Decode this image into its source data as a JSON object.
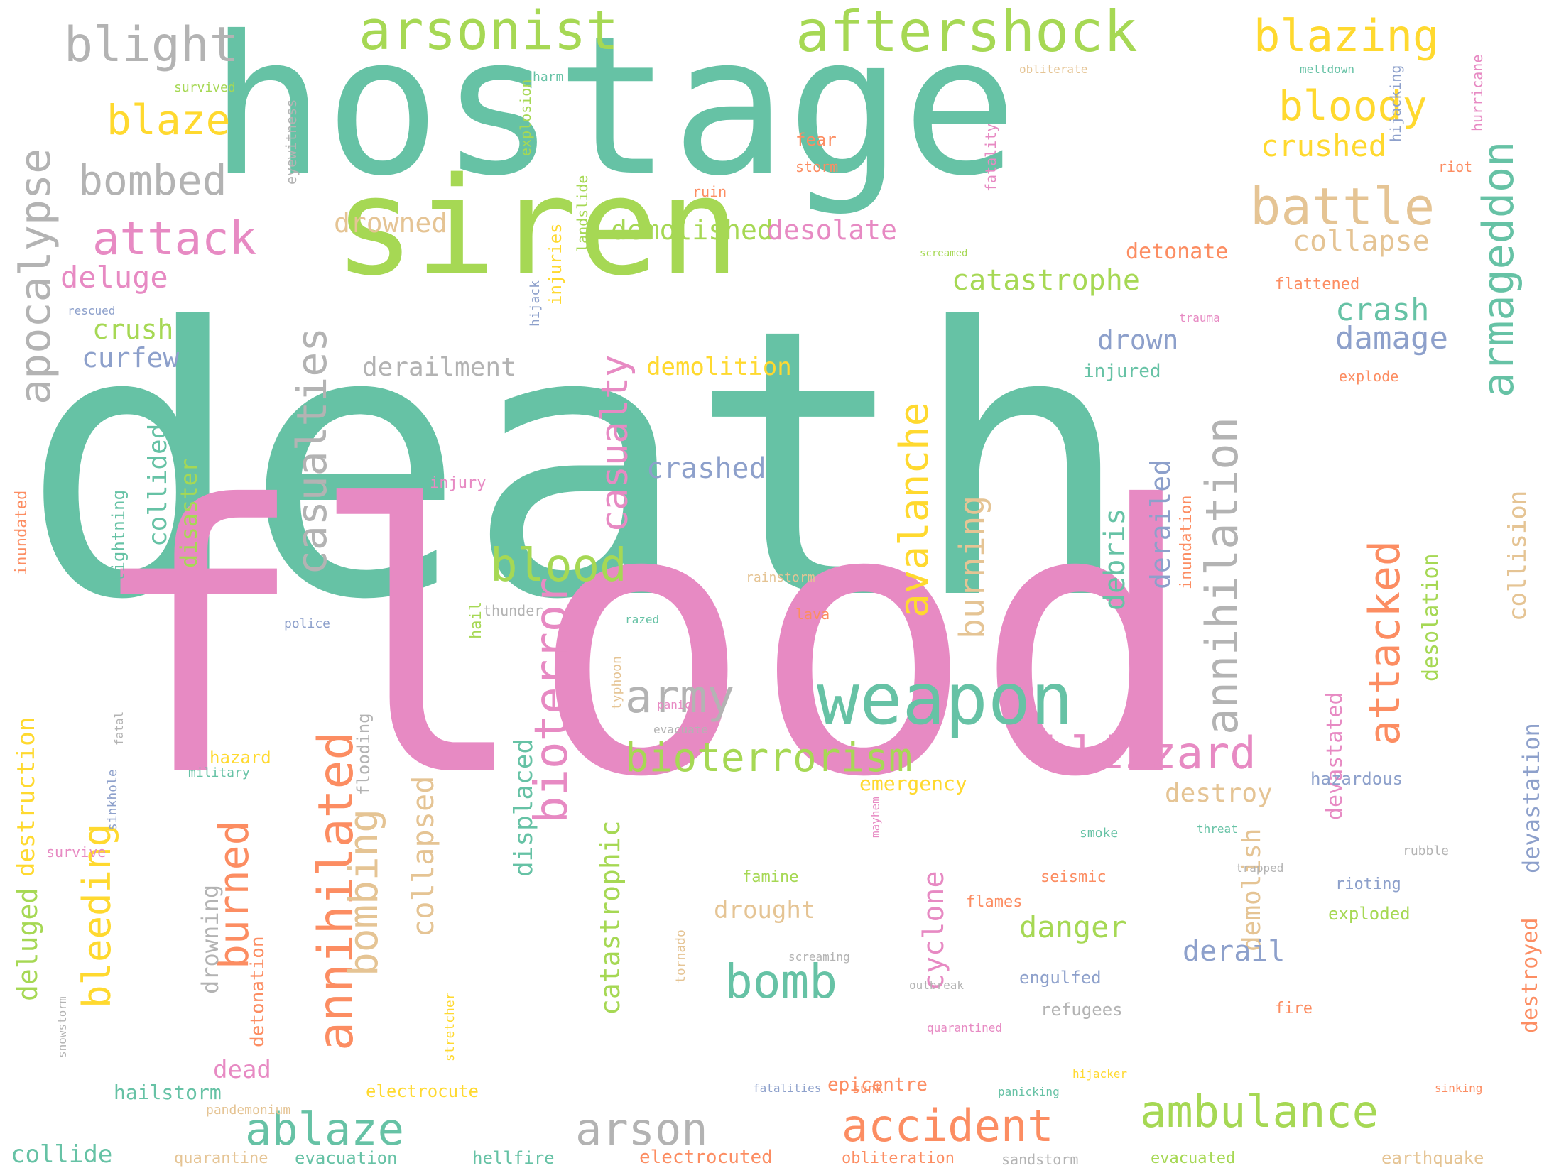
{
  "palette": {
    "teal": "#66c2a5",
    "orange": "#fc8d62",
    "blue": "#8da0cb",
    "pink": "#e78ac3",
    "green": "#a6d854",
    "yellow": "#ffd92f",
    "tan": "#e5c494",
    "grey": "#b3b3b3"
  },
  "words": [
    {
      "text": "death",
      "c": "teal"
    },
    {
      "text": "flood",
      "c": "pink"
    },
    {
      "text": "hostage",
      "c": "teal"
    },
    {
      "text": "siren",
      "c": "green"
    },
    {
      "text": "aftershock",
      "c": "green"
    },
    {
      "text": "arsonist",
      "c": "green"
    },
    {
      "text": "blight",
      "c": "grey"
    },
    {
      "text": "blazing",
      "c": "yellow"
    },
    {
      "text": "blaze",
      "c": "yellow"
    },
    {
      "text": "bombed",
      "c": "grey"
    },
    {
      "text": "bloody",
      "c": "yellow"
    },
    {
      "text": "crushed",
      "c": "yellow"
    },
    {
      "text": "battle",
      "c": "tan"
    },
    {
      "text": "attack",
      "c": "pink"
    },
    {
      "text": "deluge",
      "c": "pink"
    },
    {
      "text": "crush",
      "c": "green"
    },
    {
      "text": "curfew",
      "c": "blue"
    },
    {
      "text": "apocalypse",
      "c": "grey"
    },
    {
      "text": "casualties",
      "c": "grey"
    },
    {
      "text": "demolished",
      "c": "green"
    },
    {
      "text": "desolate",
      "c": "pink"
    },
    {
      "text": "drowned",
      "c": "tan"
    },
    {
      "text": "catastrophe",
      "c": "green"
    },
    {
      "text": "derailment",
      "c": "grey"
    },
    {
      "text": "demolition",
      "c": "yellow"
    },
    {
      "text": "collapse",
      "c": "tan"
    },
    {
      "text": "detonate",
      "c": "orange"
    },
    {
      "text": "crash",
      "c": "teal"
    },
    {
      "text": "damage",
      "c": "blue"
    },
    {
      "text": "drown",
      "c": "blue"
    },
    {
      "text": "injured",
      "c": "teal"
    },
    {
      "text": "armageddon",
      "c": "teal"
    },
    {
      "text": "annihilation",
      "c": "grey"
    },
    {
      "text": "avalanche",
      "c": "yellow"
    },
    {
      "text": "casualty",
      "c": "pink"
    },
    {
      "text": "crashed",
      "c": "blue"
    },
    {
      "text": "blood",
      "c": "green"
    },
    {
      "text": "bioterror",
      "c": "pink"
    },
    {
      "text": "army",
      "c": "grey"
    },
    {
      "text": "weapon",
      "c": "teal"
    },
    {
      "text": "bioterrorism",
      "c": "green"
    },
    {
      "text": "blizzard",
      "c": "pink"
    },
    {
      "text": "attacked",
      "c": "orange"
    },
    {
      "text": "collision",
      "c": "tan"
    },
    {
      "text": "burning",
      "c": "tan"
    },
    {
      "text": "debris",
      "c": "teal"
    },
    {
      "text": "derailed",
      "c": "blue"
    },
    {
      "text": "annihilated",
      "c": "orange"
    },
    {
      "text": "bombing",
      "c": "tan"
    },
    {
      "text": "collapsed",
      "c": "tan"
    },
    {
      "text": "burned",
      "c": "orange"
    },
    {
      "text": "bleeding",
      "c": "yellow"
    },
    {
      "text": "deluged",
      "c": "green"
    },
    {
      "text": "destruction",
      "c": "yellow"
    },
    {
      "text": "catastrophic",
      "c": "green"
    },
    {
      "text": "displaced",
      "c": "teal"
    },
    {
      "text": "demolish",
      "c": "tan"
    },
    {
      "text": "devastated",
      "c": "pink"
    },
    {
      "text": "desolation",
      "c": "green"
    },
    {
      "text": "devastation",
      "c": "blue"
    },
    {
      "text": "destroyed",
      "c": "orange"
    },
    {
      "text": "destroy",
      "c": "tan"
    },
    {
      "text": "emergency",
      "c": "yellow"
    },
    {
      "text": "hazardous",
      "c": "blue"
    },
    {
      "text": "danger",
      "c": "green"
    },
    {
      "text": "bomb",
      "c": "teal"
    },
    {
      "text": "cyclone",
      "c": "pink"
    },
    {
      "text": "drought",
      "c": "tan"
    },
    {
      "text": "derail",
      "c": "blue"
    },
    {
      "text": "exploded",
      "c": "green"
    },
    {
      "text": "engulfed",
      "c": "blue"
    },
    {
      "text": "dead",
      "c": "pink"
    },
    {
      "text": "hazard",
      "c": "yellow"
    },
    {
      "text": "drowning",
      "c": "grey"
    },
    {
      "text": "detonation",
      "c": "orange"
    },
    {
      "text": "flooding",
      "c": "grey"
    },
    {
      "text": "collided",
      "c": "teal"
    },
    {
      "text": "disaster",
      "c": "green"
    },
    {
      "text": "lightning",
      "c": "teal"
    },
    {
      "text": "inundated",
      "c": "orange"
    },
    {
      "text": "inundation",
      "c": "orange"
    },
    {
      "text": "ablaze",
      "c": "teal"
    },
    {
      "text": "arson",
      "c": "grey"
    },
    {
      "text": "accident",
      "c": "orange"
    },
    {
      "text": "ambulance",
      "c": "green"
    },
    {
      "text": "collide",
      "c": "teal"
    },
    {
      "text": "hailstorm",
      "c": "teal"
    },
    {
      "text": "electrocute",
      "c": "yellow"
    },
    {
      "text": "epicentre",
      "c": "orange"
    },
    {
      "text": "evacuation",
      "c": "teal"
    },
    {
      "text": "hellfire",
      "c": "teal"
    },
    {
      "text": "electrocuted",
      "c": "orange"
    },
    {
      "text": "evacuated",
      "c": "green"
    },
    {
      "text": "earthquake",
      "c": "tan"
    },
    {
      "text": "quarantine",
      "c": "tan"
    },
    {
      "text": "obliteration",
      "c": "orange"
    },
    {
      "text": "sandstorm",
      "c": "grey"
    },
    {
      "text": "fire",
      "c": "orange"
    },
    {
      "text": "refugees",
      "c": "grey"
    },
    {
      "text": "flames",
      "c": "orange"
    },
    {
      "text": "seismic",
      "c": "orange"
    },
    {
      "text": "famine",
      "c": "green"
    },
    {
      "text": "rioting",
      "c": "blue"
    },
    {
      "text": "fatality",
      "c": "pink"
    },
    {
      "text": "hijacking",
      "c": "blue"
    },
    {
      "text": "hurricane",
      "c": "pink"
    },
    {
      "text": "flattened",
      "c": "orange"
    },
    {
      "text": "explode",
      "c": "orange"
    },
    {
      "text": "injury",
      "c": "pink"
    },
    {
      "text": "injuries",
      "c": "yellow"
    },
    {
      "text": "landslide",
      "c": "green"
    },
    {
      "text": "explosion",
      "c": "green"
    },
    {
      "text": "fear",
      "c": "orange"
    },
    {
      "text": "storm",
      "c": "orange"
    },
    {
      "text": "ruin",
      "c": "orange"
    },
    {
      "text": "riot",
      "c": "orange"
    },
    {
      "text": "harm",
      "c": "teal"
    },
    {
      "text": "survived",
      "c": "green"
    },
    {
      "text": "eyewitness",
      "c": "grey"
    },
    {
      "text": "rescued",
      "c": "blue"
    },
    {
      "text": "screamed",
      "c": "green"
    },
    {
      "text": "obliterate",
      "c": "tan"
    },
    {
      "text": "meltdown",
      "c": "teal"
    },
    {
      "text": "hijack",
      "c": "blue"
    },
    {
      "text": "trauma",
      "c": "pink"
    },
    {
      "text": "lava",
      "c": "orange"
    },
    {
      "text": "thunder",
      "c": "grey"
    },
    {
      "text": "police",
      "c": "blue"
    },
    {
      "text": "hail",
      "c": "green"
    },
    {
      "text": "military",
      "c": "teal"
    },
    {
      "text": "survive",
      "c": "pink"
    },
    {
      "text": "panic",
      "c": "pink"
    },
    {
      "text": "mayhem",
      "c": "pink"
    },
    {
      "text": "smoke",
      "c": "teal"
    },
    {
      "text": "threat",
      "c": "teal"
    },
    {
      "text": "rubble",
      "c": "grey"
    },
    {
      "text": "trapped",
      "c": "grey"
    },
    {
      "text": "pandemonium",
      "c": "tan"
    },
    {
      "text": "sinking",
      "c": "orange"
    },
    {
      "text": "panicking",
      "c": "teal"
    },
    {
      "text": "sunk",
      "c": "orange"
    },
    {
      "text": "fatalities",
      "c": "blue"
    },
    {
      "text": "outbreak",
      "c": "grey"
    },
    {
      "text": "screaming",
      "c": "grey"
    },
    {
      "text": "evacuate",
      "c": "grey"
    },
    {
      "text": "tornado",
      "c": "tan"
    },
    {
      "text": "fatal",
      "c": "grey"
    },
    {
      "text": "sinkhole",
      "c": "blue"
    },
    {
      "text": "typhoon",
      "c": "tan"
    },
    {
      "text": "rainstorm",
      "c": "tan"
    },
    {
      "text": "razed",
      "c": "teal"
    },
    {
      "text": "stretcher",
      "c": "yellow"
    },
    {
      "text": "quarantined",
      "c": "pink"
    },
    {
      "text": "hijacker",
      "c": "yellow"
    },
    {
      "text": "snowstorm",
      "c": "grey"
    }
  ]
}
